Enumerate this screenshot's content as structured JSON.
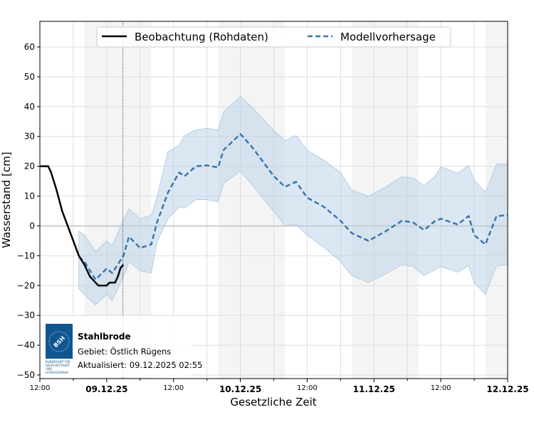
{
  "chart_data": {
    "type": "line",
    "xlabel": "Gesetzliche Zeit",
    "ylabel": "Wasserstand [cm]",
    "xlim": [
      "2025-12-08T12:00",
      "2025-12-12T00:00"
    ],
    "ylim": [
      -51.2,
      68.6
    ],
    "yticks": [
      -50,
      -40,
      -30,
      -20,
      -10,
      0,
      10,
      20,
      30,
      40,
      50,
      60
    ],
    "xticks": [
      {
        "t": "2025-12-08T12:00",
        "label": "12:00",
        "major": false
      },
      {
        "t": "2025-12-09T00:00",
        "label": "09.12.25",
        "major": true
      },
      {
        "t": "2025-12-09T12:00",
        "label": "12:00",
        "major": false
      },
      {
        "t": "2025-12-10T00:00",
        "label": "10.12.25",
        "major": true
      },
      {
        "t": "2025-12-10T12:00",
        "label": "12:00",
        "major": false
      },
      {
        "t": "2025-12-11T00:00",
        "label": "11.12.25",
        "major": true
      },
      {
        "t": "2025-12-11T12:00",
        "label": "12:00",
        "major": false
      },
      {
        "t": "2025-12-12T00:00",
        "label": "12.12.25",
        "major": true
      }
    ],
    "grid": true,
    "legend_position": "top-center",
    "night_bands": [
      [
        "2025-12-08T20:00",
        "2025-12-09T08:00"
      ],
      [
        "2025-12-09T20:00",
        "2025-12-10T08:00"
      ],
      [
        "2025-12-10T20:00",
        "2025-12-11T08:00"
      ],
      [
        "2025-12-11T20:00",
        "2025-12-12T00:00"
      ]
    ],
    "update_marker": "2025-12-09T02:55",
    "colors": {
      "observation": "#000000",
      "forecast": "#3a75b0",
      "band": "#b8d1e8",
      "night": "#f4f4f4"
    },
    "series": [
      {
        "name": "Beobachtung (Rohdaten)",
        "style": "solid",
        "points": [
          [
            "2025-12-08T12:00",
            20
          ],
          [
            "2025-12-08T13:30",
            20
          ],
          [
            "2025-12-08T14:00",
            18
          ],
          [
            "2025-12-08T15:00",
            12
          ],
          [
            "2025-12-08T16:00",
            5
          ],
          [
            "2025-12-08T17:00",
            0
          ],
          [
            "2025-12-08T18:00",
            -5
          ],
          [
            "2025-12-08T19:00",
            -10
          ],
          [
            "2025-12-08T20:00",
            -13
          ],
          [
            "2025-12-08T21:00",
            -17
          ],
          [
            "2025-12-08T22:00",
            -19
          ],
          [
            "2025-12-08T22:30",
            -20
          ],
          [
            "2025-12-09T00:00",
            -20
          ],
          [
            "2025-12-09T00:30",
            -19
          ],
          [
            "2025-12-09T01:30",
            -19
          ],
          [
            "2025-12-09T02:00",
            -17
          ],
          [
            "2025-12-09T02:30",
            -14
          ],
          [
            "2025-12-09T03:00",
            -13
          ]
        ]
      },
      {
        "name": "Modellvorhersage",
        "style": "dashed",
        "points": [
          [
            "2025-12-08T19:00",
            -10.3,
            -1.7,
            -21
          ],
          [
            "2025-12-08T20:00",
            -12,
            -3,
            -23
          ],
          [
            "2025-12-08T22:00",
            -18,
            -8.6,
            -26.5
          ],
          [
            "2025-12-09T00:00",
            -14.3,
            -5,
            -23
          ],
          [
            "2025-12-09T01:00",
            -15.8,
            -6.7,
            -25
          ],
          [
            "2025-12-09T03:00",
            -10,
            2,
            -17
          ],
          [
            "2025-12-09T04:00",
            -3.6,
            5.7,
            -12
          ],
          [
            "2025-12-09T06:00",
            -7.4,
            2.4,
            -15
          ],
          [
            "2025-12-09T08:00",
            -6.2,
            3.6,
            -15.8
          ],
          [
            "2025-12-09T09:00",
            1,
            9.5,
            -5.5
          ],
          [
            "2025-12-09T11:00",
            11.2,
            24.8,
            2.4
          ],
          [
            "2025-12-09T13:00",
            17.9,
            27,
            6.4
          ],
          [
            "2025-12-09T14:00",
            16.7,
            30.3,
            6
          ],
          [
            "2025-12-09T16:00",
            20,
            32.2,
            8.8
          ],
          [
            "2025-12-09T18:00",
            20.3,
            32.7,
            8.8
          ],
          [
            "2025-12-09T20:00",
            19.6,
            32.2,
            8.1
          ],
          [
            "2025-12-09T21:00",
            25.5,
            38.2,
            14.3
          ],
          [
            "2025-12-10T00:00",
            30.8,
            43.4,
            18.4
          ],
          [
            "2025-12-10T02:00",
            26.7,
            40,
            14
          ],
          [
            "2025-12-10T06:00",
            16.7,
            32,
            4.8
          ],
          [
            "2025-12-10T08:00",
            13.1,
            28.6,
            0
          ],
          [
            "2025-12-10T10:00",
            14.8,
            30.3,
            0.5
          ],
          [
            "2025-12-10T12:00",
            9.5,
            25.5,
            -3.1
          ],
          [
            "2025-12-10T15:00",
            6.4,
            22,
            -7.2
          ],
          [
            "2025-12-10T18:00",
            1.7,
            17.9,
            -11.9
          ],
          [
            "2025-12-10T20:00",
            -2.4,
            12,
            -16.7
          ],
          [
            "2025-12-10T23:00",
            -5,
            10,
            -19
          ],
          [
            "2025-12-11T02:00",
            -1.9,
            12.9,
            -16.2
          ],
          [
            "2025-12-11T05:00",
            1.7,
            16.5,
            -13
          ],
          [
            "2025-12-11T07:00",
            1.2,
            16,
            -13.6
          ],
          [
            "2025-12-11T09:00",
            -1.4,
            13.6,
            -16.7
          ],
          [
            "2025-12-11T11:00",
            1.7,
            16.7,
            -14.6
          ],
          [
            "2025-12-11T12:00",
            2.4,
            19.8,
            -13.6
          ],
          [
            "2025-12-11T15:00",
            0.5,
            17.7,
            -15.5
          ],
          [
            "2025-12-11T17:00",
            3.3,
            20.3,
            -13.4
          ],
          [
            "2025-12-11T18:00",
            -3.1,
            15.3,
            -19
          ],
          [
            "2025-12-11T20:00",
            -6.2,
            11.2,
            -23
          ],
          [
            "2025-12-11T22:00",
            3.3,
            20.8,
            -13.4
          ],
          [
            "2025-12-12T00:00",
            3.6,
            20.8,
            -13
          ]
        ]
      }
    ]
  },
  "info_box": {
    "station": "Stahlbrode",
    "area": "Gebiet: Östlich Rügens",
    "updated": "Aktualisiert: 09.12.2025 02:55",
    "logo_text": "BSH",
    "logo_caption": [
      "BUNDESAMT FÜR",
      "SEESCHIFFFAHRT",
      "UND",
      "HYDROGRAPHIE"
    ]
  }
}
